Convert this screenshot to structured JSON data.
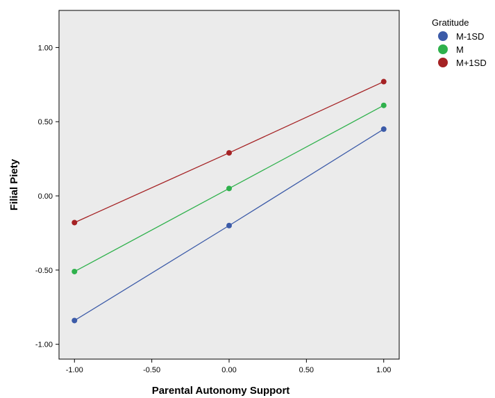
{
  "chart_data": {
    "type": "line",
    "title": "",
    "xlabel": "Parental Autonomy Support",
    "ylabel": "Filial Piety",
    "xlim": [
      -1.1,
      1.1
    ],
    "ylim": [
      -1.1,
      1.25
    ],
    "x_ticks": [
      -1.0,
      -0.5,
      0.0,
      0.5,
      1.0
    ],
    "x_tick_labels": [
      "-1.00",
      "-0.50",
      "0.00",
      "0.50",
      "1.00"
    ],
    "y_ticks": [
      -1.0,
      -0.5,
      0.0,
      0.5,
      1.0
    ],
    "y_tick_labels": [
      "-1.00",
      "-0.50",
      "0.00",
      "0.50",
      "1.00"
    ],
    "x": [
      -1.0,
      0.0,
      1.0
    ],
    "legend_title": "Gratitude",
    "legend_position": "right",
    "grid": false,
    "plot_background": "#ebebeb",
    "series": [
      {
        "name": "M-1SD",
        "values": [
          -0.84,
          -0.2,
          0.45
        ],
        "color": "#3c5ba8"
      },
      {
        "name": "M",
        "values": [
          -0.51,
          0.05,
          0.61
        ],
        "color": "#2fb14c"
      },
      {
        "name": "M+1SD",
        "values": [
          -0.18,
          0.29,
          0.77
        ],
        "color": "#a52224"
      }
    ]
  }
}
